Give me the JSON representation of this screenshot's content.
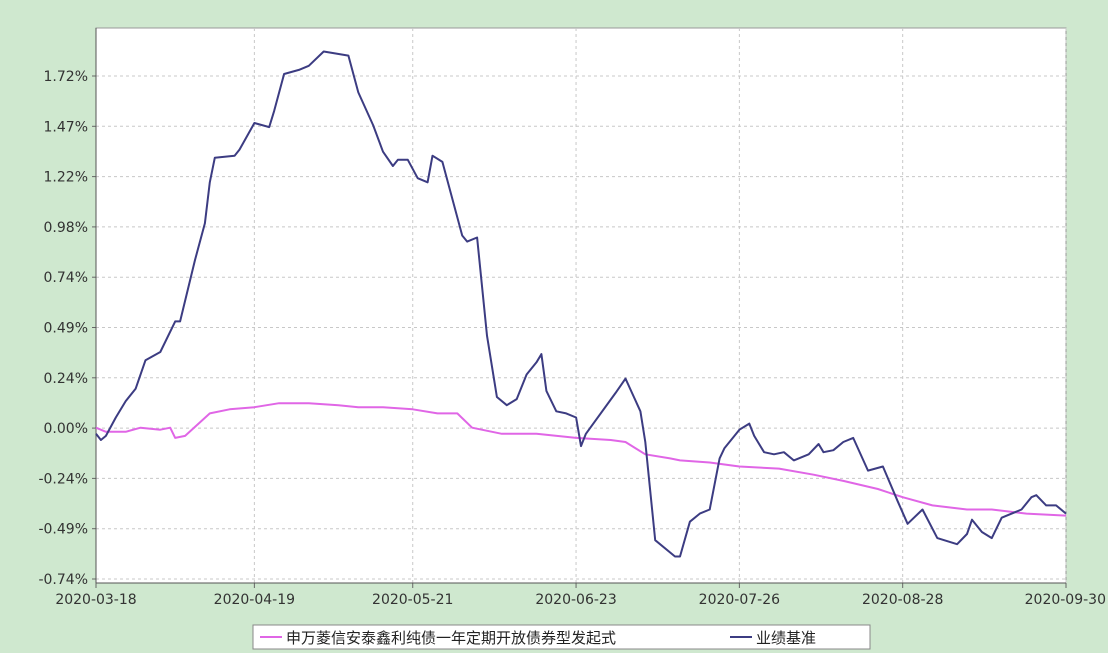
{
  "colors": {
    "background": "#cfe8cf",
    "plot_background": "#ffffff",
    "fund_line": "#e066e6",
    "benchmark_line": "#3c3c82"
  },
  "chart_data": {
    "type": "line",
    "title": "",
    "xlabel": "",
    "ylabel": "",
    "x_tick_labels": [
      "2020-03-18",
      "2020-04-19",
      "2020-05-21",
      "2020-06-23",
      "2020-07-26",
      "2020-08-28",
      "2020-09-30"
    ],
    "y_tick_labels": [
      "1.72%",
      "1.47%",
      "1.22%",
      "0.98%",
      "0.74%",
      "0.49%",
      "0.24%",
      "0.00%",
      "-0.24%",
      "-0.49%",
      "-0.74%"
    ],
    "ylim": [
      -0.74,
      1.72
    ],
    "unit": "%",
    "grid": true,
    "legend_position": "bottom",
    "series": [
      {
        "name": "申万菱信安泰鑫利纯债一年定期开放债券型发起式",
        "color": "#e066e6",
        "points": [
          [
            "2020-03-18",
            0.0
          ],
          [
            "2020-03-20",
            -0.02
          ],
          [
            "2020-03-24",
            -0.02
          ],
          [
            "2020-03-27",
            0.0
          ],
          [
            "2020-03-31",
            -0.01
          ],
          [
            "2020-04-02",
            0.0
          ],
          [
            "2020-04-03",
            -0.05
          ],
          [
            "2020-04-05",
            -0.04
          ],
          [
            "2020-04-10",
            0.07
          ],
          [
            "2020-04-14",
            0.09
          ],
          [
            "2020-04-19",
            0.1
          ],
          [
            "2020-04-24",
            0.12
          ],
          [
            "2020-04-30",
            0.12
          ],
          [
            "2020-05-06",
            0.11
          ],
          [
            "2020-05-10",
            0.1
          ],
          [
            "2020-05-15",
            0.1
          ],
          [
            "2020-05-21",
            0.09
          ],
          [
            "2020-05-26",
            0.07
          ],
          [
            "2020-05-30",
            0.07
          ],
          [
            "2020-06-02",
            0.0
          ],
          [
            "2020-06-08",
            -0.03
          ],
          [
            "2020-06-15",
            -0.03
          ],
          [
            "2020-06-23",
            -0.05
          ],
          [
            "2020-06-30",
            -0.06
          ],
          [
            "2020-07-03",
            -0.07
          ],
          [
            "2020-07-07",
            -0.13
          ],
          [
            "2020-07-12",
            -0.15
          ],
          [
            "2020-07-14",
            -0.16
          ],
          [
            "2020-07-20",
            -0.17
          ],
          [
            "2020-07-26",
            -0.19
          ],
          [
            "2020-08-03",
            -0.2
          ],
          [
            "2020-08-10",
            -0.23
          ],
          [
            "2020-08-16",
            -0.26
          ],
          [
            "2020-08-23",
            -0.3
          ],
          [
            "2020-08-28",
            -0.34
          ],
          [
            "2020-09-03",
            -0.38
          ],
          [
            "2020-09-10",
            -0.4
          ],
          [
            "2020-09-15",
            -0.4
          ],
          [
            "2020-09-22",
            -0.42
          ],
          [
            "2020-09-30",
            -0.43
          ]
        ]
      },
      {
        "name": "业绩基准",
        "color": "#3c3c82",
        "points": [
          [
            "2020-03-18",
            -0.03
          ],
          [
            "2020-03-19",
            -0.06
          ],
          [
            "2020-03-20",
            -0.04
          ],
          [
            "2020-03-22",
            0.05
          ],
          [
            "2020-03-24",
            0.13
          ],
          [
            "2020-03-26",
            0.19
          ],
          [
            "2020-03-28",
            0.33
          ],
          [
            "2020-03-31",
            0.37
          ],
          [
            "2020-04-03",
            0.52
          ],
          [
            "2020-04-04",
            0.52
          ],
          [
            "2020-04-07",
            0.82
          ],
          [
            "2020-04-09",
            1.0
          ],
          [
            "2020-04-10",
            1.2
          ],
          [
            "2020-04-11",
            1.32
          ],
          [
            "2020-04-15",
            1.33
          ],
          [
            "2020-04-16",
            1.36
          ],
          [
            "2020-04-19",
            1.49
          ],
          [
            "2020-04-22",
            1.47
          ],
          [
            "2020-04-23",
            1.55
          ],
          [
            "2020-04-25",
            1.73
          ],
          [
            "2020-04-28",
            1.75
          ],
          [
            "2020-04-30",
            1.77
          ],
          [
            "2020-05-03",
            1.84
          ],
          [
            "2020-05-08",
            1.82
          ],
          [
            "2020-05-10",
            1.64
          ],
          [
            "2020-05-13",
            1.48
          ],
          [
            "2020-05-15",
            1.35
          ],
          [
            "2020-05-17",
            1.28
          ],
          [
            "2020-05-18",
            1.31
          ],
          [
            "2020-05-20",
            1.31
          ],
          [
            "2020-05-22",
            1.22
          ],
          [
            "2020-05-24",
            1.2
          ],
          [
            "2020-05-25",
            1.33
          ],
          [
            "2020-05-27",
            1.3
          ],
          [
            "2020-05-31",
            0.94
          ],
          [
            "2020-06-01",
            0.91
          ],
          [
            "2020-06-03",
            0.93
          ],
          [
            "2020-06-05",
            0.45
          ],
          [
            "2020-06-07",
            0.15
          ],
          [
            "2020-06-09",
            0.11
          ],
          [
            "2020-06-11",
            0.14
          ],
          [
            "2020-06-13",
            0.26
          ],
          [
            "2020-06-15",
            0.32
          ],
          [
            "2020-06-16",
            0.36
          ],
          [
            "2020-06-17",
            0.18
          ],
          [
            "2020-06-19",
            0.08
          ],
          [
            "2020-06-21",
            0.07
          ],
          [
            "2020-06-23",
            0.05
          ],
          [
            "2020-06-24",
            -0.09
          ],
          [
            "2020-06-25",
            -0.03
          ],
          [
            "2020-07-01",
            0.17
          ],
          [
            "2020-07-03",
            0.24
          ],
          [
            "2020-07-06",
            0.08
          ],
          [
            "2020-07-07",
            -0.07
          ],
          [
            "2020-07-09",
            -0.55
          ],
          [
            "2020-07-13",
            -0.63
          ],
          [
            "2020-07-14",
            -0.63
          ],
          [
            "2020-07-16",
            -0.46
          ],
          [
            "2020-07-18",
            -0.42
          ],
          [
            "2020-07-20",
            -0.4
          ],
          [
            "2020-07-22",
            -0.15
          ],
          [
            "2020-07-23",
            -0.1
          ],
          [
            "2020-07-26",
            -0.01
          ],
          [
            "2020-07-28",
            0.02
          ],
          [
            "2020-07-29",
            -0.04
          ],
          [
            "2020-07-31",
            -0.12
          ],
          [
            "2020-08-02",
            -0.13
          ],
          [
            "2020-08-04",
            -0.12
          ],
          [
            "2020-08-06",
            -0.16
          ],
          [
            "2020-08-09",
            -0.13
          ],
          [
            "2020-08-11",
            -0.08
          ],
          [
            "2020-08-12",
            -0.12
          ],
          [
            "2020-08-14",
            -0.11
          ],
          [
            "2020-08-16",
            -0.07
          ],
          [
            "2020-08-18",
            -0.05
          ],
          [
            "2020-08-21",
            -0.21
          ],
          [
            "2020-08-24",
            -0.19
          ],
          [
            "2020-08-27",
            -0.36
          ],
          [
            "2020-08-29",
            -0.47
          ],
          [
            "2020-09-01",
            -0.4
          ],
          [
            "2020-09-04",
            -0.54
          ],
          [
            "2020-09-08",
            -0.57
          ],
          [
            "2020-09-10",
            -0.52
          ],
          [
            "2020-09-11",
            -0.45
          ],
          [
            "2020-09-13",
            -0.51
          ],
          [
            "2020-09-15",
            -0.54
          ],
          [
            "2020-09-17",
            -0.44
          ],
          [
            "2020-09-21",
            -0.4
          ],
          [
            "2020-09-23",
            -0.34
          ],
          [
            "2020-09-24",
            -0.33
          ],
          [
            "2020-09-26",
            -0.38
          ],
          [
            "2020-09-28",
            -0.38
          ],
          [
            "2020-09-30",
            -0.42
          ]
        ]
      }
    ]
  }
}
